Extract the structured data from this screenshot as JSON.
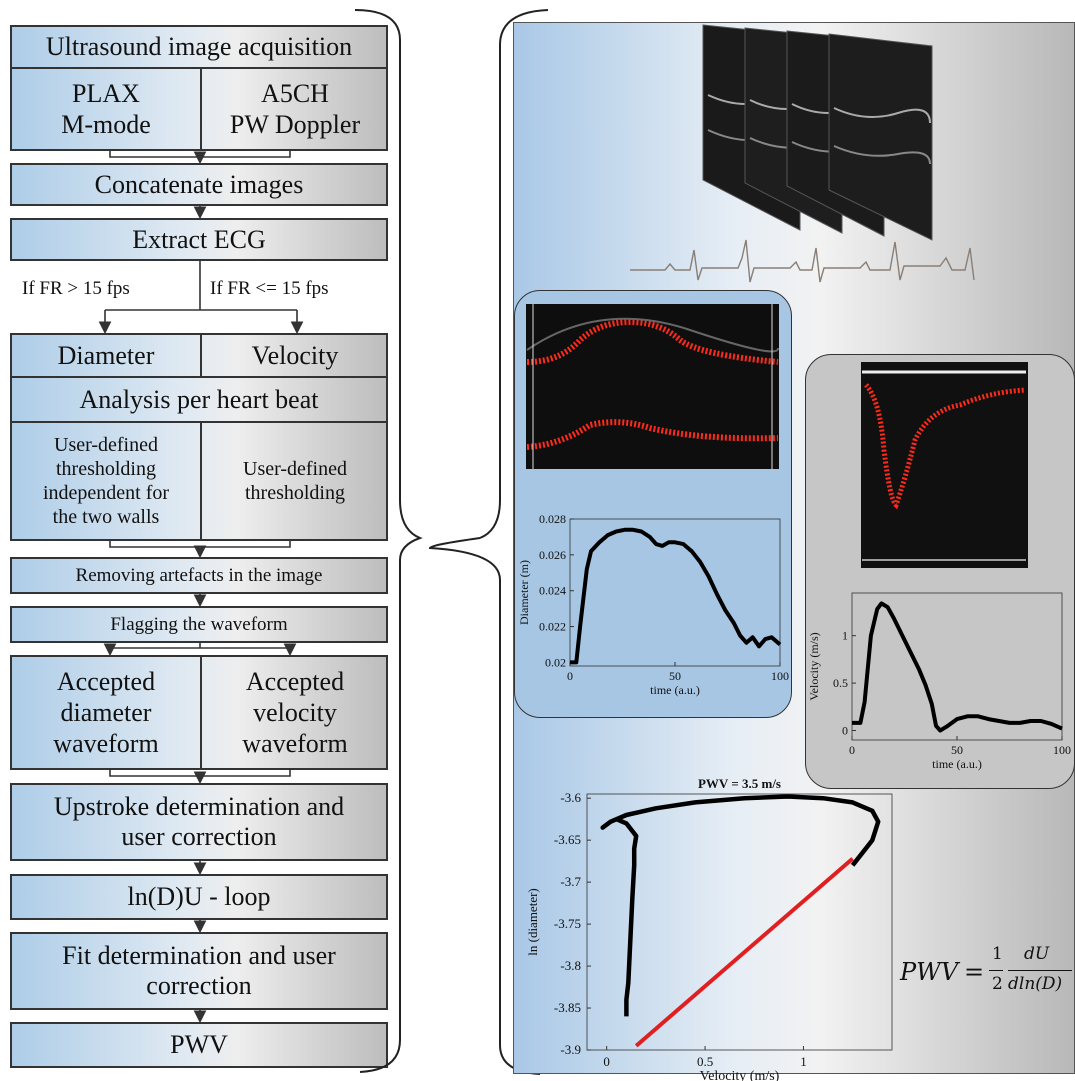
{
  "flow": {
    "acquisition": "Ultrasound image acquisition",
    "plax_1": "PLAX",
    "plax_2": "M-mode",
    "a5ch_1": "A5CH",
    "a5ch_2": "PW Doppler",
    "concat": "Concatenate images",
    "extract_ecg": "Extract ECG",
    "if_gt": "If  FR  >  15 fps",
    "if_le": "If  FR <= 15 fps",
    "diameter": "Diameter",
    "velocity": "Velocity",
    "analysis": "Analysis per heart beat",
    "thresh_left": [
      "User-defined",
      "thresholding",
      "independent for",
      "the two walls"
    ],
    "thresh_right": [
      "User-defined",
      "thresholding"
    ],
    "artefacts": "Removing artefacts in the image",
    "flagging": "Flagging the waveform",
    "accepted_left": [
      "Accepted",
      "diameter",
      "waveform"
    ],
    "accepted_right": [
      "Accepted",
      "velocity",
      "waveform"
    ],
    "upstroke": [
      "Upstroke determination and",
      "user correction"
    ],
    "loop": "ln(D)U - loop",
    "fit": [
      "Fit determination and user",
      "correction"
    ],
    "pwv": "PWV"
  },
  "colors": {
    "gradient_left": "#aecde8",
    "gradient_right": "#bdbdbd",
    "fit_line": "#e02020",
    "trace_red": "#ff2a1a",
    "ecg": "#8a7f76"
  },
  "diameter_plot": {
    "ylabel": "Diameter (m)",
    "xlabel": "time (a.u.)",
    "xticks": [
      "0",
      "50",
      "100"
    ],
    "yticks": [
      "0.02",
      "0.022",
      "0.024",
      "0.026",
      "0.028"
    ],
    "chart_data": {
      "type": "line",
      "xlim": [
        0,
        100
      ],
      "ylim": [
        0.0198,
        0.028
      ],
      "x": [
        0,
        3,
        5,
        8,
        10,
        14,
        18,
        22,
        26,
        30,
        34,
        38,
        41,
        44,
        47,
        50,
        54,
        58,
        62,
        66,
        70,
        74,
        78,
        81,
        84,
        87,
        90,
        93,
        96,
        100
      ],
      "y": [
        0.02,
        0.02,
        0.0222,
        0.0252,
        0.0262,
        0.0267,
        0.0271,
        0.0273,
        0.0274,
        0.0274,
        0.0273,
        0.027,
        0.0266,
        0.0265,
        0.0267,
        0.0267,
        0.0266,
        0.0262,
        0.0256,
        0.0248,
        0.0238,
        0.0229,
        0.0222,
        0.0215,
        0.0211,
        0.0214,
        0.0209,
        0.0213,
        0.0214,
        0.021
      ]
    }
  },
  "velocity_plot": {
    "ylabel": "Velocity (m/s)",
    "xlabel": "time (a.u.)",
    "xticks": [
      "0",
      "50",
      "100"
    ],
    "yticks": [
      "0",
      "0.5",
      "1"
    ],
    "chart_data": {
      "type": "line",
      "xlim": [
        0,
        100
      ],
      "ylim": [
        -0.1,
        1.45
      ],
      "x": [
        0,
        4,
        6,
        9,
        12,
        14,
        17,
        20,
        24,
        28,
        32,
        35,
        38,
        40,
        42,
        45,
        50,
        55,
        60,
        65,
        70,
        75,
        80,
        85,
        90,
        95,
        100
      ],
      "y": [
        0.08,
        0.08,
        0.3,
        1.0,
        1.28,
        1.34,
        1.3,
        1.18,
        1.0,
        0.82,
        0.64,
        0.48,
        0.28,
        0.05,
        0.0,
        0.04,
        0.12,
        0.15,
        0.15,
        0.12,
        0.1,
        0.08,
        0.08,
        0.1,
        0.1,
        0.07,
        0.02
      ]
    }
  },
  "loop_plot": {
    "title": "PWV = 3.5 m/s",
    "ylabel": "ln (diameter)",
    "xlabel": "Velocity (m/s)",
    "xticks": [
      "0",
      "0.5",
      "1"
    ],
    "yticks": [
      "-3.6",
      "-3.65",
      "-3.7",
      "-3.75",
      "-3.8",
      "-3.85",
      "-3.9"
    ],
    "chart_data": {
      "type": "line",
      "xlim": [
        -0.1,
        1.45
      ],
      "ylim": [
        -3.9,
        -3.595
      ],
      "loop": {
        "x": [
          0.1,
          0.1,
          0.11,
          0.12,
          0.13,
          0.14,
          0.14,
          0.15,
          0.1,
          0.05,
          0.02,
          -0.02,
          0.02,
          0.1,
          0.25,
          0.45,
          0.7,
          0.92,
          1.1,
          1.25,
          1.35,
          1.38,
          1.35,
          1.3,
          1.25
        ],
        "y": [
          -3.86,
          -3.84,
          -3.82,
          -3.77,
          -3.72,
          -3.68,
          -3.66,
          -3.645,
          -3.63,
          -3.625,
          -3.628,
          -3.635,
          -3.628,
          -3.62,
          -3.612,
          -3.605,
          -3.6,
          -3.598,
          -3.6,
          -3.605,
          -3.615,
          -3.628,
          -3.65,
          -3.665,
          -3.68
        ]
      },
      "fit": {
        "x": [
          0.15,
          1.25
        ],
        "y": [
          -3.895,
          -3.672
        ]
      }
    }
  },
  "formula": {
    "lhs": "PWV",
    "eq": "=",
    "num1": "1",
    "den1": "2",
    "num2": "dU",
    "den2": "dln(D)"
  }
}
